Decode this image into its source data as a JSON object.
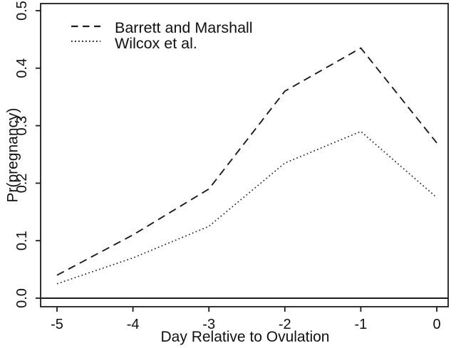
{
  "figure": {
    "background": "#ffffff",
    "ink_color": "#1c1c1c"
  },
  "chart_data": {
    "type": "line",
    "title": "",
    "xlabel": "Day Relative to Ovulation",
    "ylabel": "Pr(pregnancy)",
    "x": [
      -5,
      -4,
      -3,
      -2,
      -1,
      0
    ],
    "x_tick_labels": [
      "-5",
      "-4",
      "-3",
      "-2",
      "-1",
      "0"
    ],
    "y_ticks": [
      0.0,
      0.1,
      0.2,
      0.3,
      0.4,
      0.5
    ],
    "y_tick_labels": [
      "0.0",
      "0.1",
      "0.2",
      "0.3",
      "0.4",
      "0.5"
    ],
    "xlim": [
      -5.2,
      0.15
    ],
    "ylim": [
      -0.015,
      0.515
    ],
    "grid": false,
    "frame": "box",
    "reference_line_y": 0,
    "legend_position": "top-left-inside",
    "series": [
      {
        "name": "Barrett and Marshall",
        "line_style": "dashed",
        "color": "#1c1c1c",
        "values": [
          0.04,
          0.11,
          0.19,
          0.36,
          0.435,
          0.27
        ]
      },
      {
        "name": "Wilcox et al.",
        "line_style": "dotted",
        "color": "#1c1c1c",
        "values": [
          0.025,
          0.07,
          0.125,
          0.235,
          0.29,
          0.175
        ]
      }
    ]
  }
}
